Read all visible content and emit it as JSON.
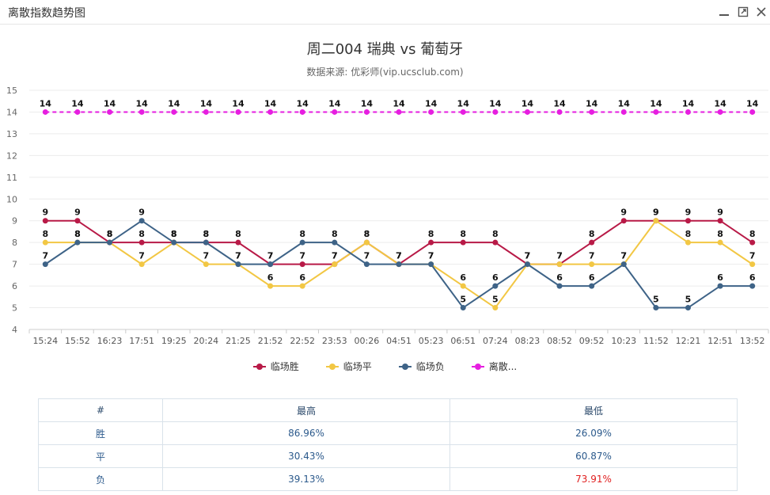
{
  "window": {
    "title": "离散指数趋势图",
    "controls": {
      "minimize": "minimize-icon",
      "restore": "restore-icon",
      "close": "close-icon"
    }
  },
  "chart_data": {
    "type": "line",
    "title": "周二004 瑞典 vs 葡萄牙",
    "subtitle": "数据来源: 优彩师(vip.ucsclub.com)",
    "categories": [
      "15:24",
      "15:52",
      "16:23",
      "17:51",
      "19:25",
      "20:24",
      "21:25",
      "21:52",
      "22:52",
      "23:53",
      "00:26",
      "04:51",
      "05:23",
      "06:51",
      "07:24",
      "08:23",
      "08:52",
      "09:52",
      "10:23",
      "11:52",
      "12:21",
      "12:51",
      "13:52"
    ],
    "ylim": [
      4,
      15
    ],
    "yticks": [
      4,
      5,
      6,
      7,
      8,
      9,
      10,
      11,
      12,
      13,
      14,
      15
    ],
    "grid": true,
    "legend_position": "bottom",
    "series": [
      {
        "name": "临场胜",
        "color": "#b81a47",
        "dashed": false,
        "values": [
          9,
          9,
          8,
          8,
          8,
          8,
          8,
          7,
          7,
          7,
          8,
          7,
          8,
          8,
          8,
          7,
          7,
          8,
          9,
          9,
          9,
          9,
          8
        ]
      },
      {
        "name": "临场平",
        "color": "#f2c744",
        "dashed": false,
        "values": [
          8,
          8,
          8,
          7,
          8,
          7,
          7,
          6,
          6,
          7,
          8,
          7,
          7,
          6,
          5,
          7,
          7,
          7,
          7,
          9,
          8,
          8,
          7
        ]
      },
      {
        "name": "临场负",
        "color": "#3e6387",
        "dashed": false,
        "values": [
          7,
          8,
          8,
          9,
          8,
          8,
          7,
          7,
          8,
          8,
          7,
          7,
          7,
          5,
          6,
          7,
          6,
          6,
          7,
          5,
          5,
          6,
          6
        ]
      },
      {
        "name": "离散...",
        "color": "#e61ee0",
        "dashed": true,
        "values": [
          14,
          14,
          14,
          14,
          14,
          14,
          14,
          14,
          14,
          14,
          14,
          14,
          14,
          14,
          14,
          14,
          14,
          14,
          14,
          14,
          14,
          14,
          14
        ]
      }
    ]
  },
  "stats_table": {
    "headers": [
      "#",
      "最高",
      "最低"
    ],
    "rows": [
      {
        "label": "胜",
        "high": "86.96%",
        "low": "26.09%"
      },
      {
        "label": "平",
        "high": "30.43%",
        "low": "60.87%"
      },
      {
        "label": "负",
        "high": "39.13%",
        "low": "73.91%"
      }
    ],
    "low_highlight_color": "#e02020"
  }
}
